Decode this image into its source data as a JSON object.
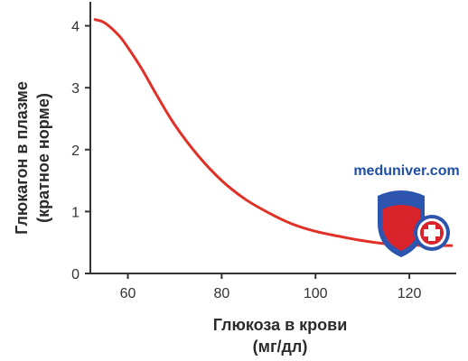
{
  "chart_data": {
    "type": "line",
    "title": "",
    "xlabel": [
      "Глюкоза в крови",
      "(мг/дл)"
    ],
    "ylabel": [
      "Глюкагон в плазме",
      "(кратное норме)"
    ],
    "x_ticks": [
      60,
      80,
      100,
      120
    ],
    "y_ticks": [
      0,
      1,
      2,
      3,
      4
    ],
    "xlim": [
      52,
      130
    ],
    "ylim": [
      0,
      4.3
    ],
    "grid": false,
    "legend": "none",
    "line_color": "#e03128",
    "series": [
      {
        "x": [
          53,
          55,
          58,
          60,
          63,
          66,
          70,
          75,
          80,
          85,
          90,
          95,
          100,
          105,
          110,
          115,
          120,
          125,
          129
        ],
        "values": [
          4.1,
          4.05,
          3.85,
          3.65,
          3.3,
          2.9,
          2.4,
          1.9,
          1.5,
          1.2,
          0.98,
          0.8,
          0.68,
          0.6,
          0.53,
          0.48,
          0.46,
          0.45,
          0.45
        ]
      }
    ]
  },
  "watermark": {
    "text": "meduniver.com",
    "colors": {
      "text": "#1e4ea8",
      "shield_blue": "#2c55b0",
      "shield_red": "#d8232a",
      "cross_white": "#ffffff"
    }
  }
}
